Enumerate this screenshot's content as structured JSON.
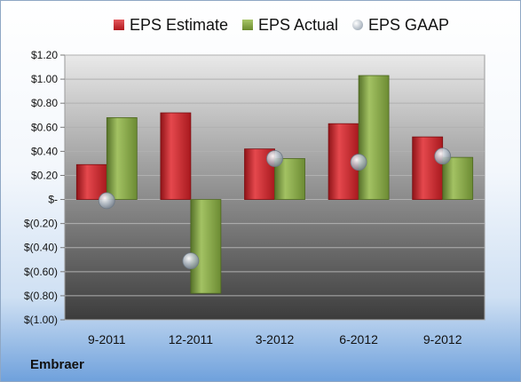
{
  "chart_data": {
    "type": "bar",
    "categories": [
      "9-2011",
      "12-2011",
      "3-2012",
      "6-2012",
      "9-2012"
    ],
    "series": [
      {
        "name": "EPS Estimate",
        "kind": "bar",
        "color": "#c0282d",
        "values": [
          0.29,
          0.72,
          0.42,
          0.63,
          0.52
        ]
      },
      {
        "name": "EPS Actual",
        "kind": "bar",
        "color": "#7a9a3a",
        "values": [
          0.68,
          -0.78,
          0.34,
          1.03,
          0.35
        ]
      },
      {
        "name": "EPS GAAP",
        "kind": "marker",
        "color": "#b8c3cf",
        "values": [
          -0.01,
          -0.51,
          0.34,
          0.31,
          0.36
        ]
      }
    ],
    "ylim": [
      -1.0,
      1.2
    ],
    "yticks": [
      1.2,
      1.0,
      0.8,
      0.6,
      0.4,
      0.2,
      0.0,
      -0.2,
      -0.4,
      -0.6,
      -0.8,
      -1.0
    ],
    "ytick_labels": [
      "$1.20",
      "$1.00",
      "$0.80",
      "$0.60",
      "$0.40",
      "$0.20",
      "$-",
      "$(0.20)",
      "$(0.40)",
      "$(0.60)",
      "$(0.80)",
      "$(1.00)"
    ],
    "grid": true,
    "legend_position": "top"
  },
  "footer": {
    "company": "Embraer"
  }
}
